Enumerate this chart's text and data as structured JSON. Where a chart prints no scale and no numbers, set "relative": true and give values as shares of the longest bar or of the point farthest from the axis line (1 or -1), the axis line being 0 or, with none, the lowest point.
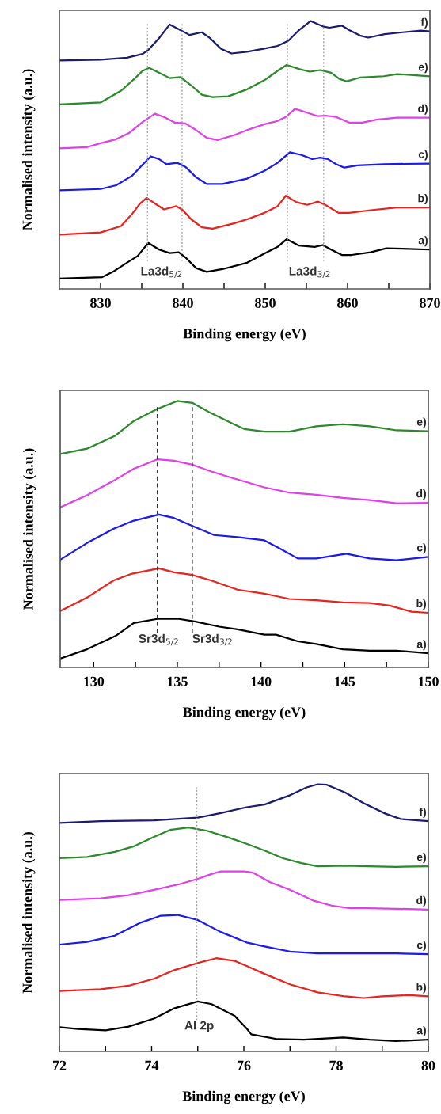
{
  "chart_data": [
    {
      "type": "line",
      "relative": true,
      "xlabel": "Binding energy (eV)",
      "ylabel": "Normalised intensity (a.u.)",
      "xlim": [
        825,
        870
      ],
      "xticks": [
        830,
        840,
        850,
        860,
        870,
        {
          "value": 835,
          "label": null
        },
        {
          "value": 845,
          "label": null
        },
        {
          "value": 855,
          "label": null
        },
        {
          "value": 865,
          "label": null
        }
      ],
      "grid": false,
      "legend": false,
      "series": [
        {
          "name": "a)",
          "color": "#000000",
          "x": [
            825,
            830.2,
            831.5,
            833.2,
            834.5,
            835.8,
            837.1,
            838.4,
            839.5,
            840.3,
            841.6,
            842.9,
            844.8,
            847.8,
            849.9,
            851.5,
            852.6,
            854.1,
            856,
            857,
            858,
            859.3,
            860.5,
            862.8,
            864.7,
            866.7,
            870
          ],
          "values": [
            0.039,
            0.044,
            0.064,
            0.098,
            0.123,
            0.172,
            0.147,
            0.134,
            0.137,
            0.118,
            0.078,
            0.064,
            0.074,
            0.098,
            0.132,
            0.157,
            0.186,
            0.162,
            0.157,
            0.164,
            0.147,
            0.127,
            0.127,
            0.137,
            0.152,
            0.15,
            0.147
          ]
        },
        {
          "name": "b)",
          "color": "#e8231e",
          "x": [
            825,
            830,
            832.5,
            833.8,
            834.8,
            835.6,
            836.6,
            837.7,
            839.2,
            840,
            841,
            842.3,
            843.6,
            846.2,
            847.8,
            849.9,
            851.5,
            852.5,
            853.8,
            855.1,
            856.4,
            857.3,
            858.9,
            860.2,
            862.8,
            866,
            870
          ],
          "values": [
            0.203,
            0.211,
            0.235,
            0.279,
            0.319,
            0.34,
            0.319,
            0.297,
            0.309,
            0.294,
            0.26,
            0.23,
            0.225,
            0.245,
            0.26,
            0.284,
            0.309,
            0.348,
            0.324,
            0.314,
            0.326,
            0.314,
            0.284,
            0.284,
            0.294,
            0.304,
            0.304
          ]
        },
        {
          "name": "c)",
          "color": "#1a1aeb",
          "x": [
            825,
            830,
            831.9,
            833.8,
            835.1,
            836.1,
            837.1,
            838,
            839.3,
            840.3,
            841.6,
            842.9,
            844.8,
            847.8,
            849.9,
            851.5,
            853,
            854.4,
            855.7,
            856.7,
            857.6,
            858.6,
            859.6,
            861.2,
            864.4,
            870
          ],
          "values": [
            0.368,
            0.373,
            0.387,
            0.422,
            0.464,
            0.495,
            0.485,
            0.466,
            0.471,
            0.456,
            0.417,
            0.392,
            0.392,
            0.412,
            0.441,
            0.471,
            0.51,
            0.5,
            0.485,
            0.49,
            0.485,
            0.466,
            0.453,
            0.461,
            0.466,
            0.468
          ]
        },
        {
          "name": "d)",
          "color": "#e040e8",
          "x": [
            825,
            828.3,
            830,
            831.9,
            833.5,
            835.1,
            836.6,
            837.7,
            839,
            840.3,
            841.6,
            842.9,
            844.2,
            846.2,
            847.8,
            849.9,
            851.5,
            852.5,
            853.6,
            854.7,
            856.4,
            857.3,
            858.6,
            860.2,
            861.8,
            863.5,
            866,
            870
          ],
          "values": [
            0.525,
            0.529,
            0.544,
            0.559,
            0.583,
            0.623,
            0.654,
            0.642,
            0.621,
            0.618,
            0.593,
            0.564,
            0.556,
            0.574,
            0.593,
            0.615,
            0.627,
            0.642,
            0.672,
            0.662,
            0.645,
            0.647,
            0.642,
            0.621,
            0.621,
            0.632,
            0.639,
            0.639
          ]
        },
        {
          "name": "e)",
          "color": "#2a8a2a",
          "x": [
            825,
            830,
            832.5,
            834.1,
            835.1,
            835.9,
            837,
            838.4,
            839.7,
            841,
            842.3,
            843.6,
            845.5,
            847.8,
            849.9,
            851.5,
            852.6,
            854.1,
            855.4,
            856.7,
            858,
            859,
            859.9,
            861.5,
            864.4,
            866,
            870
          ],
          "values": [
            0.689,
            0.696,
            0.74,
            0.784,
            0.814,
            0.825,
            0.809,
            0.787,
            0.791,
            0.76,
            0.725,
            0.716,
            0.719,
            0.745,
            0.779,
            0.814,
            0.836,
            0.821,
            0.811,
            0.817,
            0.807,
            0.784,
            0.775,
            0.789,
            0.794,
            0.802,
            0.794
          ]
        },
        {
          "name": "f)",
          "color": "#1c1c6e",
          "x": [
            825,
            830,
            833.2,
            835.1,
            835.8,
            837.1,
            838.4,
            839.7,
            840.8,
            842.3,
            843.3,
            844.6,
            845.9,
            847.8,
            849.9,
            851.5,
            852.8,
            854.1,
            855.5,
            857,
            857.8,
            859.3,
            860.2,
            861.5,
            862.5,
            864.5,
            866.7,
            868.9,
            870
          ],
          "values": [
            0.853,
            0.856,
            0.863,
            0.877,
            0.892,
            0.936,
            0.987,
            0.966,
            0.948,
            0.958,
            0.936,
            0.897,
            0.879,
            0.885,
            0.897,
            0.907,
            0.926,
            0.966,
            1.0,
            0.98,
            0.975,
            0.983,
            0.966,
            0.946,
            0.938,
            0.951,
            0.958,
            0.964,
            0.961
          ]
        }
      ],
      "ref_lines": [
        {
          "axis": "x",
          "value": 835.7,
          "color": "#999999",
          "line_style": "dotted"
        },
        {
          "axis": "x",
          "value": 839.9,
          "color": "#999999",
          "line_style": "dotted"
        },
        {
          "axis": "x",
          "value": 852.7,
          "color": "#999999",
          "line_style": "dotted"
        },
        {
          "axis": "x",
          "value": 857.1,
          "color": "#999999",
          "line_style": "dotted"
        }
      ],
      "annotations": [
        "La3d$_{5/2}$",
        "La3d$_{3/2}$"
      ]
    },
    {
      "type": "line",
      "relative": true,
      "xlabel": "Binding energy (eV)",
      "ylabel": "Normalised intensity (a.u.)",
      "xlim": [
        128,
        150
      ],
      "xticks": [
        130,
        135,
        140,
        145,
        150,
        {
          "value": 132.5,
          "label": null
        },
        {
          "value": 137.5,
          "label": null
        },
        {
          "value": 142.5,
          "label": null
        },
        {
          "value": 147.5,
          "label": null
        }
      ],
      "grid": false,
      "legend": false,
      "series": [
        {
          "name": "a)",
          "color": "#000000",
          "x": [
            128,
            129.6,
            131.3,
            132.4,
            133.8,
            135.1,
            136.1,
            137.5,
            138.6,
            140.2,
            140.9,
            142.2,
            143.3,
            144.9,
            146.5,
            148.1,
            150
          ],
          "values": [
            0.033,
            0.068,
            0.118,
            0.167,
            0.182,
            0.182,
            0.172,
            0.153,
            0.143,
            0.123,
            0.123,
            0.098,
            0.088,
            0.068,
            0.063,
            0.063,
            0.053
          ]
        },
        {
          "name": "b)",
          "color": "#e8231e",
          "x": [
            128,
            129.6,
            131.2,
            132.3,
            133.9,
            134.8,
            135.9,
            137,
            138.6,
            140.2,
            141.7,
            143.3,
            144.9,
            146.5,
            147.7,
            149,
            150
          ],
          "values": [
            0.212,
            0.262,
            0.327,
            0.352,
            0.372,
            0.357,
            0.347,
            0.327,
            0.292,
            0.277,
            0.257,
            0.252,
            0.244,
            0.242,
            0.232,
            0.209,
            0.205
          ]
        },
        {
          "name": "c)",
          "color": "#1a1aeb",
          "x": [
            128,
            129.6,
            131.2,
            132.4,
            133.9,
            134.8,
            135.9,
            137.2,
            138.6,
            140.2,
            141.1,
            142.2,
            143.3,
            145.1,
            146.5,
            148.1,
            150
          ],
          "values": [
            0.404,
            0.467,
            0.521,
            0.551,
            0.574,
            0.561,
            0.531,
            0.497,
            0.489,
            0.477,
            0.447,
            0.409,
            0.409,
            0.427,
            0.409,
            0.402,
            0.415
          ]
        },
        {
          "name": "d)",
          "color": "#e040e8",
          "x": [
            128,
            129.6,
            131.2,
            132.4,
            133.8,
            134.8,
            135.9,
            137,
            138.3,
            140.2,
            141.7,
            143.3,
            144.9,
            146.5,
            148.1,
            150
          ],
          "values": [
            0.601,
            0.646,
            0.701,
            0.746,
            0.781,
            0.776,
            0.761,
            0.736,
            0.711,
            0.676,
            0.656,
            0.648,
            0.636,
            0.628,
            0.616,
            0.618
          ]
        },
        {
          "name": "e)",
          "color": "#2a8a2a",
          "x": [
            128,
            129.6,
            131.3,
            132.4,
            133.8,
            135,
            135.9,
            137,
            138.3,
            139,
            140.2,
            141.7,
            143.3,
            144.9,
            146.5,
            148.1,
            150
          ],
          "values": [
            0.801,
            0.821,
            0.87,
            0.925,
            0.97,
            1.0,
            0.993,
            0.955,
            0.915,
            0.895,
            0.885,
            0.885,
            0.905,
            0.913,
            0.905,
            0.89,
            0.887
          ]
        }
      ],
      "ref_lines": [
        {
          "axis": "x",
          "value": 133.8,
          "color": "#333333",
          "line_style": "dashed"
        },
        {
          "axis": "x",
          "value": 135.9,
          "color": "#333333",
          "line_style": "dashed"
        }
      ],
      "annotations": [
        "Sr3d$_{5/2}$",
        "Sr3d$_{3/2}$"
      ]
    },
    {
      "type": "line",
      "relative": true,
      "xlabel": "Binding energy (eV)",
      "ylabel": "Normalised intensity (a.u.)",
      "xlim": [
        72,
        80
      ],
      "xticks": [
        72,
        74,
        76,
        78,
        80,
        {
          "value": 73,
          "label": null
        },
        {
          "value": 75,
          "label": null
        },
        {
          "value": 77,
          "label": null
        },
        {
          "value": 79,
          "label": null
        }
      ],
      "grid": false,
      "legend": false,
      "series": [
        {
          "name": "a)",
          "color": "#000000",
          "x": [
            72,
            72.4,
            73.0,
            73.5,
            74.05,
            74.5,
            75.0,
            75.3,
            75.8,
            76.06,
            76.16,
            76.73,
            77.3,
            78.16,
            78.73,
            79.3,
            80
          ],
          "values": [
            0.091,
            0.084,
            0.079,
            0.093,
            0.123,
            0.162,
            0.187,
            0.177,
            0.133,
            0.086,
            0.064,
            0.046,
            0.044,
            0.052,
            0.044,
            0.039,
            0.044
          ]
        },
        {
          "name": "b)",
          "color": "#e8231e",
          "x": [
            72,
            72.9,
            73.5,
            74.05,
            74.5,
            75.0,
            75.4,
            75.8,
            76.06,
            76.45,
            77.0,
            77.6,
            78.2,
            78.6,
            79.0,
            79.6,
            80
          ],
          "values": [
            0.226,
            0.233,
            0.246,
            0.272,
            0.305,
            0.331,
            0.349,
            0.339,
            0.32,
            0.29,
            0.251,
            0.221,
            0.206,
            0.2,
            0.206,
            0.211,
            0.206
          ]
        },
        {
          "name": "c)",
          "color": "#1a1aeb",
          "x": [
            72,
            72.6,
            73.2,
            73.76,
            74.2,
            74.56,
            75.0,
            75.5,
            76.06,
            76.45,
            77.0,
            77.6,
            78.45,
            79.3,
            80
          ],
          "values": [
            0.4,
            0.41,
            0.433,
            0.482,
            0.508,
            0.511,
            0.492,
            0.447,
            0.408,
            0.393,
            0.374,
            0.367,
            0.367,
            0.367,
            0.364
          ]
        },
        {
          "name": "d)",
          "color": "#e040e8",
          "x": [
            72,
            72.9,
            73.5,
            74.05,
            74.6,
            75.0,
            75.3,
            75.5,
            76,
            76.2,
            76.56,
            77.0,
            77.5,
            77.9,
            78.3,
            78.7,
            79.3,
            80
          ],
          "values": [
            0.567,
            0.573,
            0.585,
            0.605,
            0.626,
            0.646,
            0.664,
            0.674,
            0.674,
            0.669,
            0.634,
            0.605,
            0.565,
            0.546,
            0.536,
            0.536,
            0.534,
            0.531
          ]
        },
        {
          "name": "e)",
          "color": "#2a8a2a",
          "x": [
            72,
            72.6,
            73.2,
            73.6,
            74.05,
            74.4,
            74.8,
            75.2,
            75.66,
            76.06,
            76.45,
            76.85,
            77.25,
            77.6,
            78.2,
            78.7,
            79.3,
            80
          ],
          "values": [
            0.723,
            0.728,
            0.747,
            0.767,
            0.803,
            0.829,
            0.838,
            0.826,
            0.801,
            0.777,
            0.752,
            0.723,
            0.705,
            0.693,
            0.695,
            0.693,
            0.691,
            0.693
          ]
        },
        {
          "name": "f)",
          "color": "#1c1c6e",
          "x": [
            72,
            72.9,
            74.05,
            75,
            75.5,
            76.06,
            76.45,
            77.0,
            77.36,
            77.6,
            77.8,
            78.2,
            78.6,
            79.07,
            79.4,
            80
          ],
          "values": [
            0.855,
            0.862,
            0.865,
            0.875,
            0.892,
            0.914,
            0.924,
            0.959,
            0.988,
            1.0,
            0.998,
            0.969,
            0.929,
            0.89,
            0.87,
            0.862
          ]
        }
      ],
      "ref_lines": [
        {
          "axis": "x",
          "value": 74.98,
          "color": "#999999",
          "line_style": "dotted"
        }
      ],
      "annotations": [
        "Al 2p"
      ]
    }
  ]
}
